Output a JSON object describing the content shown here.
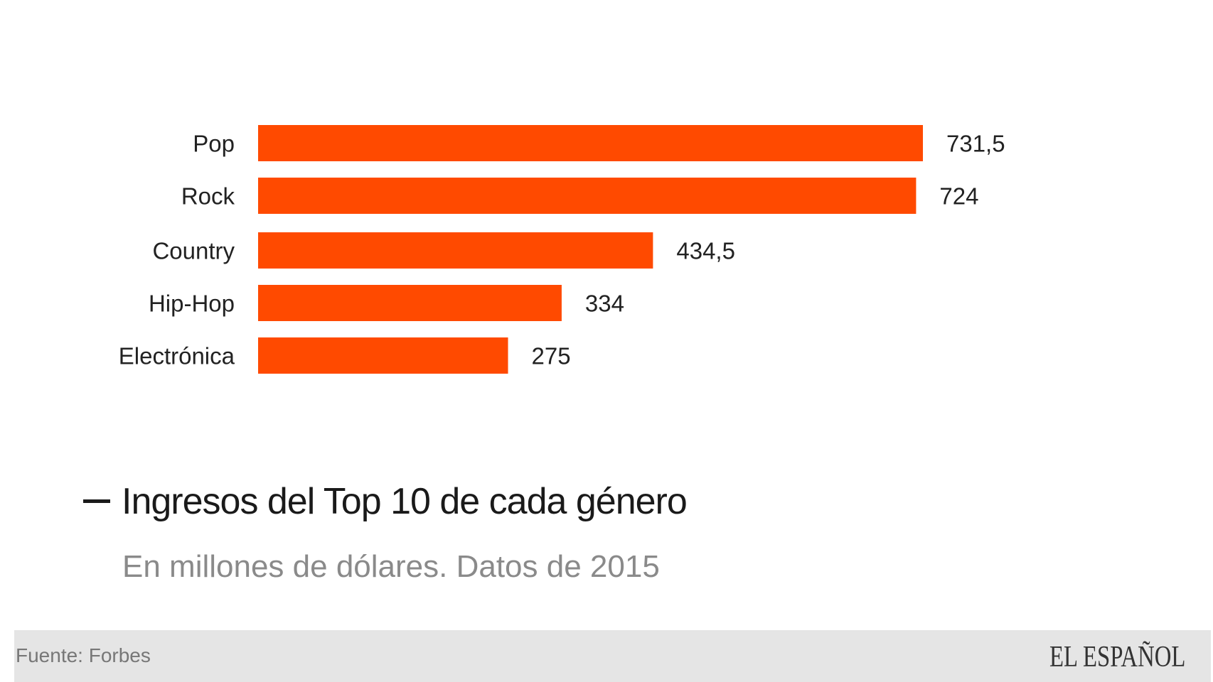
{
  "chart_data": {
    "type": "bar",
    "orientation": "horizontal",
    "categories": [
      "Pop",
      "Rock",
      "Country",
      "Hip-Hop",
      "Electrónica"
    ],
    "values": [
      731.5,
      724,
      434.5,
      334,
      275
    ],
    "value_labels": [
      "731,5",
      "724",
      "434,5",
      "334",
      "275"
    ],
    "title": "Ingresos del Top 10 de cada género",
    "subtitle": "En millones de dólares. Datos de 2015",
    "xlabel": "",
    "ylabel": "",
    "xlim": [
      0,
      731.5
    ],
    "grid": false,
    "bar_color": "#ff4a00"
  },
  "footer": {
    "source": "Fuente: Forbes",
    "logo": "EL ESPAÑOL"
  }
}
